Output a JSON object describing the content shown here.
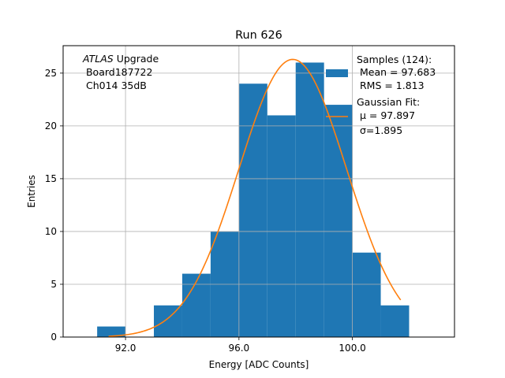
{
  "chart_data": {
    "type": "bar",
    "title": "Run 626",
    "xlabel": "Energy [ADC Counts]",
    "ylabel": "Entries",
    "xlim": [
      89.8,
      103.6
    ],
    "ylim": [
      0,
      27.6
    ],
    "xticks": [
      92.0,
      96.0,
      100.0
    ],
    "xtick_labels": [
      "92.0",
      "96.0",
      "100.0"
    ],
    "yticks": [
      0,
      5,
      10,
      15,
      20,
      25
    ],
    "ytick_labels": [
      "0",
      "5",
      "10",
      "15",
      "20",
      "25"
    ],
    "grid": true,
    "bin_edges": [
      91.0,
      92.0,
      93.0,
      94.0,
      95.0,
      96.0,
      97.0,
      98.0,
      99.0,
      100.0,
      101.0,
      102.0
    ],
    "values": [
      1,
      0,
      3,
      6,
      10,
      24,
      21,
      26,
      22,
      8,
      3
    ],
    "fit": {
      "type": "gaussian",
      "amplitude": 26.3,
      "mu": 97.897,
      "sigma": 1.895,
      "x_range": [
        91.4,
        101.7
      ]
    },
    "colors": {
      "bars": "#1f77b4",
      "fit": "#ff7f0e",
      "grid": "#b0b0b0"
    },
    "annotation": {
      "prefix": "ATLAS",
      "line1_rest": " Upgrade",
      "line2": " Board187722",
      "line3": " Ch014 35dB"
    },
    "legend": {
      "placement": "upper right",
      "entries": [
        {
          "lines": [
            "Samples (124):",
            " Mean = 97.683",
            " RMS = 1.813"
          ],
          "marker": "patch"
        },
        {
          "lines": [
            "Gaussian Fit:",
            " μ = 97.897",
            " σ=1.895"
          ],
          "marker": "line"
        }
      ]
    }
  }
}
